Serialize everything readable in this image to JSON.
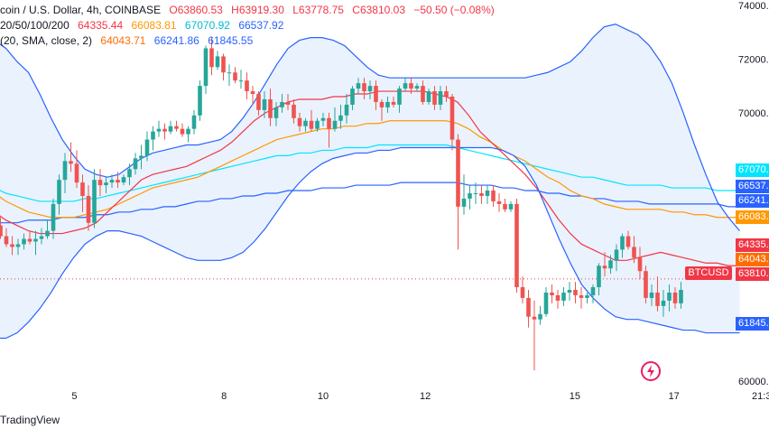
{
  "header": {
    "symbol": "coin / U.S. Dollar, 4h, COINBASE",
    "ohlc": {
      "o": "O63860.53",
      "h": "H63919.30",
      "l": "L63778.75",
      "c": "C63810.03",
      "chg": "−50.50 (−0.08%)"
    },
    "ema_label": "20/50/100/200",
    "ema_values": [
      "64335.44",
      "66083.81",
      "67070.92",
      "66537.92"
    ],
    "bb_label": "(20, SMA, close, 2)",
    "bb_values": [
      "64043.71",
      "66241.86",
      "61845.55"
    ]
  },
  "footer": {
    "brand": "TradingView"
  },
  "price_tags": [
    {
      "label": "67070.",
      "color": "#00e5ff"
    },
    {
      "label": "66537.",
      "color": "#2962ff"
    },
    {
      "label": "66241.",
      "color": "#2962ff"
    },
    {
      "label": "66083.",
      "color": "#ff9800"
    },
    {
      "label": "64335.",
      "color": "#f23645"
    },
    {
      "label": "64043.",
      "color": "#ff6d00"
    },
    {
      "label": "63810.",
      "color": "#f23645"
    },
    {
      "label": "61845.",
      "color": "#2962ff"
    }
  ],
  "symbol_tag": "BTCUSD",
  "colors": {
    "up": "#26a69a",
    "down": "#ef5350",
    "ema20": "#f23645",
    "ema50": "#ff9800",
    "ema100": "#00e5ff",
    "ema200": "#2962ff",
    "bb": "#2962ff",
    "bbfill": "#eaf2fd"
  },
  "chart_data": {
    "type": "candlestick",
    "y_axis": {
      "min": 59800,
      "max": 74200,
      "ticks": [
        60000,
        62000,
        64000,
        66000,
        68000,
        70000,
        72000,
        74000
      ],
      "tick_labels": [
        "60000.00",
        "",
        "",
        "",
        "",
        "70000.00",
        "72000.00",
        "74000.00"
      ]
    },
    "x_axis": {
      "labels": [
        {
          "t": "5",
          "i": 13.6
        },
        {
          "t": "8",
          "i": 39.1
        },
        {
          "t": "10",
          "i": 56
        },
        {
          "t": "12",
          "i": 73.4
        },
        {
          "t": "15",
          "i": 98.9
        },
        {
          "t": "17",
          "i": 115.8
        },
        {
          "t": "21:30",
          "i": 131.2
        }
      ]
    },
    "candles": [
      [
        65500,
        65900,
        65000,
        65800
      ],
      [
        65800,
        66100,
        65300,
        65400
      ],
      [
        65400,
        65700,
        65000,
        65100
      ],
      [
        65100,
        65400,
        64700,
        65000
      ],
      [
        65000,
        65300,
        64700,
        65100
      ],
      [
        65100,
        65500,
        64900,
        65300
      ],
      [
        65300,
        65600,
        65100,
        65200
      ],
      [
        65200,
        65600,
        64700,
        65300
      ],
      [
        65300,
        65700,
        65100,
        65400
      ],
      [
        65400,
        66000,
        65300,
        65600
      ],
      [
        65600,
        66800,
        65300,
        66600
      ],
      [
        66600,
        67700,
        66200,
        67500
      ],
      [
        67500,
        68500,
        67000,
        68200
      ],
      [
        68200,
        68900,
        67800,
        68100
      ],
      [
        68100,
        68600,
        67200,
        67400
      ],
      [
        67400,
        67700,
        66300,
        66900
      ],
      [
        66900,
        67300,
        65600,
        65900
      ],
      [
        65900,
        67900,
        65700,
        67500
      ],
      [
        67500,
        67900,
        66900,
        67300
      ],
      [
        67300,
        67600,
        67000,
        67400
      ],
      [
        67400,
        67700,
        67200,
        67500
      ],
      [
        67500,
        67800,
        67200,
        67400
      ],
      [
        67400,
        67700,
        67300,
        67600
      ],
      [
        67600,
        68100,
        67300,
        67900
      ],
      [
        67900,
        68500,
        67700,
        68300
      ],
      [
        68300,
        68800,
        67900,
        68400
      ],
      [
        68400,
        69300,
        68200,
        69000
      ],
      [
        69000,
        69500,
        68600,
        69300
      ],
      [
        69300,
        69700,
        69100,
        69400
      ],
      [
        69400,
        69600,
        69000,
        69300
      ],
      [
        69300,
        69700,
        69200,
        69500
      ],
      [
        69500,
        69700,
        69300,
        69400
      ],
      [
        69400,
        69600,
        69100,
        69200
      ],
      [
        69200,
        69500,
        68900,
        69400
      ],
      [
        69400,
        70100,
        69200,
        69900
      ],
      [
        69900,
        71200,
        69700,
        71000
      ],
      [
        71000,
        72500,
        70700,
        72400
      ],
      [
        72400,
        72800,
        71400,
        71700
      ],
      [
        71700,
        72300,
        71600,
        72100
      ],
      [
        72100,
        72200,
        71200,
        71500
      ],
      [
        71500,
        71800,
        71000,
        71500
      ],
      [
        71500,
        71700,
        71100,
        71200
      ],
      [
        71200,
        71600,
        70900,
        71200
      ],
      [
        71200,
        71500,
        70500,
        70800
      ],
      [
        70800,
        71000,
        70300,
        70700
      ],
      [
        70700,
        70800,
        69900,
        70100
      ],
      [
        70100,
        70800,
        69800,
        70500
      ],
      [
        70500,
        70900,
        69500,
        69800
      ],
      [
        69800,
        70400,
        69500,
        70200
      ],
      [
        70200,
        70700,
        70000,
        70400
      ],
      [
        70400,
        70700,
        70100,
        70300
      ],
      [
        70300,
        70500,
        69600,
        69800
      ],
      [
        69800,
        70000,
        69300,
        69500
      ],
      [
        69500,
        69800,
        69300,
        69700
      ],
      [
        69700,
        70100,
        69300,
        69400
      ],
      [
        69400,
        69800,
        69300,
        69700
      ],
      [
        69700,
        70000,
        69500,
        69800
      ],
      [
        69800,
        70000,
        68700,
        69400
      ],
      [
        69400,
        70200,
        69300,
        69700
      ],
      [
        69700,
        70300,
        69400,
        69900
      ],
      [
        69900,
        70700,
        69600,
        70300
      ],
      [
        70300,
        71000,
        70100,
        70900
      ],
      [
        70900,
        71300,
        70700,
        71100
      ],
      [
        71100,
        71300,
        70500,
        70800
      ],
      [
        70800,
        71200,
        70500,
        71000
      ],
      [
        71000,
        71200,
        70100,
        70400
      ],
      [
        70400,
        70500,
        69700,
        70200
      ],
      [
        70200,
        70600,
        70000,
        70400
      ],
      [
        70400,
        70600,
        70200,
        70300
      ],
      [
        70300,
        71000,
        70000,
        70900
      ],
      [
        70900,
        71300,
        70800,
        71100
      ],
      [
        71100,
        71300,
        70700,
        70900
      ],
      [
        70900,
        71100,
        70800,
        71000
      ],
      [
        71000,
        71200,
        70300,
        70400
      ],
      [
        70400,
        70900,
        70300,
        70800
      ],
      [
        70800,
        71000,
        70100,
        70300
      ],
      [
        70300,
        71000,
        70100,
        70800
      ],
      [
        70800,
        71000,
        70400,
        70600
      ],
      [
        70600,
        70700,
        68600,
        69000
      ],
      [
        69000,
        69200,
        64900,
        66500
      ],
      [
        66500,
        67700,
        66200,
        66800
      ],
      [
        66800,
        67300,
        66400,
        67000
      ],
      [
        67000,
        67400,
        66600,
        67000
      ],
      [
        67000,
        67300,
        66600,
        66900
      ],
      [
        66900,
        67300,
        66600,
        67100
      ],
      [
        67100,
        67300,
        66500,
        66700
      ],
      [
        66700,
        67000,
        66300,
        66600
      ],
      [
        66600,
        66800,
        66300,
        66400
      ],
      [
        66400,
        66700,
        66300,
        66600
      ],
      [
        66600,
        66800,
        63300,
        63500
      ],
      [
        63500,
        63900,
        62900,
        63100
      ],
      [
        63100,
        63400,
        62000,
        62400
      ],
      [
        62400,
        63000,
        60400,
        62300
      ],
      [
        62300,
        62800,
        62100,
        62500
      ],
      [
        62500,
        63500,
        62400,
        63300
      ],
      [
        63300,
        63600,
        62900,
        63200
      ],
      [
        63200,
        63400,
        62700,
        63000
      ],
      [
        63000,
        63500,
        62800,
        63300
      ],
      [
        63300,
        63700,
        63000,
        63400
      ],
      [
        63400,
        63700,
        62900,
        63200
      ],
      [
        63200,
        63500,
        62700,
        63100
      ],
      [
        63100,
        63300,
        62900,
        63200
      ],
      [
        63200,
        63600,
        62900,
        63500
      ],
      [
        63500,
        64400,
        63200,
        64300
      ],
      [
        64300,
        64800,
        63900,
        64200
      ],
      [
        64200,
        64700,
        64000,
        64500
      ],
      [
        64500,
        65100,
        64100,
        64900
      ],
      [
        64900,
        65500,
        64600,
        65400
      ],
      [
        65400,
        65600,
        64900,
        65000
      ],
      [
        65000,
        65400,
        64400,
        64600
      ],
      [
        64600,
        65000,
        63800,
        64100
      ],
      [
        64100,
        64300,
        62900,
        63100
      ],
      [
        63100,
        63600,
        62800,
        63300
      ],
      [
        63300,
        63900,
        62600,
        62800
      ],
      [
        62800,
        63400,
        62400,
        63000
      ],
      [
        63000,
        63600,
        62600,
        63300
      ],
      [
        63300,
        63500,
        62700,
        62900
      ],
      [
        62900,
        63700,
        62700,
        63400
      ],
      [
        63400,
        63800,
        62600,
        62700
      ],
      [
        62700,
        63100,
        62400,
        62500
      ],
      [
        62500,
        63000,
        62100,
        62200
      ],
      [
        62200,
        62300,
        61900,
        62000
      ],
      [
        62000,
        62800,
        61900,
        62600
      ],
      [
        62600,
        63300,
        62400,
        63000
      ],
      [
        63000,
        63100,
        62000,
        62200
      ],
      [
        62200,
        63000,
        61900,
        62900
      ],
      [
        62900,
        64000,
        62800,
        63860
      ],
      [
        63860,
        63919,
        63779,
        63810
      ]
    ],
    "bb_upper": [
      72700,
      72400,
      71900,
      71500,
      70700,
      69800,
      69000,
      68400,
      67900,
      67700,
      67600,
      67700,
      68000,
      68300,
      68500,
      68600,
      68700,
      68800,
      68800,
      68900,
      69000,
      69300,
      69800,
      70400,
      71100,
      71800,
      72400,
      72700,
      72800,
      72800,
      72700,
      72500,
      72100,
      71700,
      71400,
      71300,
      71300,
      71300,
      71300,
      71300,
      71300,
      71300,
      71300,
      71300,
      71300,
      71300,
      71300,
      71300,
      71400,
      71500,
      71700,
      71900,
      72300,
      72800,
      73200,
      73300,
      73100,
      72900,
      72500,
      71900,
      71100,
      70000,
      68800,
      67700,
      66700,
      66100,
      65600
    ],
    "bb_lower": [
      61600,
      61600,
      61800,
      62200,
      62700,
      63300,
      64000,
      64600,
      65100,
      65400,
      65600,
      65600,
      65500,
      65400,
      65200,
      65000,
      64800,
      64600,
      64500,
      64500,
      64500,
      64600,
      64800,
      65200,
      65700,
      66300,
      66900,
      67400,
      67800,
      68100,
      68300,
      68400,
      68500,
      68500,
      68600,
      68600,
      68700,
      68700,
      68700,
      68700,
      68700,
      68700,
      68700,
      68700,
      68700,
      68600,
      68400,
      68000,
      67300,
      66300,
      65300,
      64400,
      63600,
      63100,
      62700,
      62400,
      62300,
      62300,
      62200,
      62100,
      62000,
      61900,
      61900,
      61800,
      61800,
      61800,
      61800
    ],
    "ema20": [
      66300,
      66000,
      65800,
      65600,
      65500,
      65500,
      65500,
      65600,
      65700,
      65900,
      66300,
      66700,
      67100,
      67500,
      67700,
      67800,
      67900,
      68000,
      68200,
      68400,
      68600,
      68900,
      69300,
      69700,
      70000,
      70200,
      70400,
      70500,
      70500,
      70500,
      70600,
      70600,
      70700,
      70700,
      70800,
      70800,
      70800,
      70800,
      70800,
      70700,
      70600,
      70400,
      69900,
      69300,
      68900,
      68500,
      68100,
      67700,
      67200,
      66600,
      66000,
      65500,
      65100,
      64900,
      64700,
      64500,
      64500,
      64600,
      64700,
      64800,
      64700,
      64600,
      64500,
      64400,
      64400,
      64300,
      64300
    ],
    "ema50": [
      67000,
      66700,
      66500,
      66300,
      66200,
      66100,
      66100,
      66100,
      66200,
      66300,
      66400,
      66600,
      66800,
      67000,
      67200,
      67300,
      67400,
      67500,
      67600,
      67800,
      68000,
      68200,
      68400,
      68600,
      68800,
      69000,
      69100,
      69200,
      69300,
      69400,
      69400,
      69500,
      69500,
      69600,
      69600,
      69700,
      69700,
      69700,
      69700,
      69700,
      69700,
      69600,
      69400,
      69100,
      68900,
      68600,
      68400,
      68200,
      67900,
      67600,
      67400,
      67100,
      66900,
      66800,
      66600,
      66500,
      66400,
      66400,
      66400,
      66400,
      66300,
      66300,
      66200,
      66200,
      66100,
      66100,
      66100
    ],
    "ema100": [
      67200,
      67000,
      66900,
      66800,
      66700,
      66700,
      66700,
      66700,
      66800,
      66800,
      66900,
      67000,
      67100,
      67200,
      67300,
      67400,
      67500,
      67600,
      67700,
      67800,
      67900,
      68000,
      68100,
      68200,
      68300,
      68400,
      68400,
      68500,
      68500,
      68600,
      68600,
      68700,
      68700,
      68700,
      68800,
      68800,
      68800,
      68800,
      68800,
      68800,
      68800,
      68700,
      68600,
      68500,
      68400,
      68300,
      68200,
      68100,
      68000,
      67900,
      67800,
      67700,
      67600,
      67600,
      67500,
      67400,
      67300,
      67300,
      67300,
      67300,
      67200,
      67200,
      67200,
      67200,
      67100,
      67100,
      67100
    ],
    "ema200": [
      65900,
      65900,
      65900,
      66000,
      66000,
      66000,
      66100,
      66100,
      66100,
      66200,
      66200,
      66300,
      66300,
      66400,
      66400,
      66500,
      66500,
      66600,
      66700,
      66700,
      66800,
      66800,
      66900,
      66900,
      67000,
      67000,
      67100,
      67100,
      67100,
      67200,
      67200,
      67200,
      67300,
      67300,
      67300,
      67300,
      67400,
      67400,
      67400,
      67400,
      67400,
      67400,
      67300,
      67300,
      67300,
      67200,
      67200,
      67100,
      67100,
      67000,
      67000,
      66900,
      66900,
      66800,
      66800,
      66700,
      66700,
      66700,
      66600,
      66600,
      66600,
      66600,
      66600,
      66600,
      66600,
      66500,
      66500
    ],
    "last_price": 63810.03
  }
}
